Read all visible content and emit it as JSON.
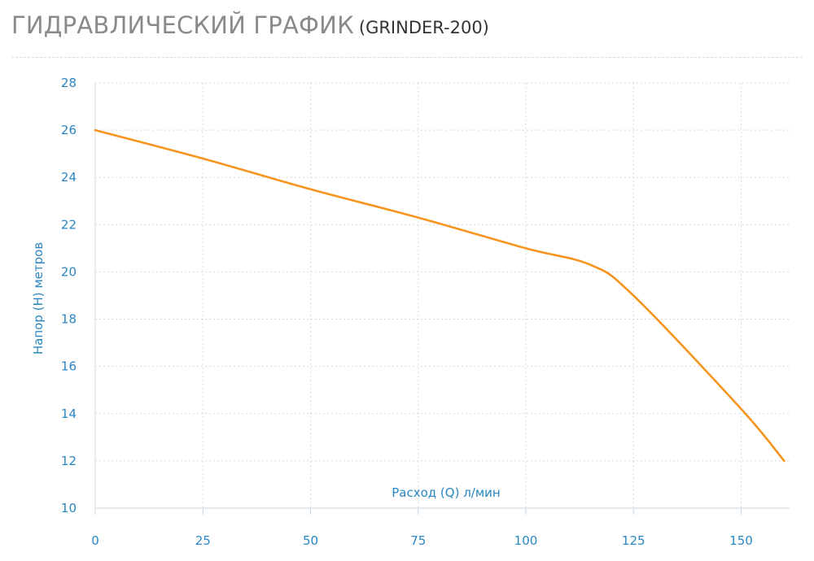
{
  "header": {
    "title": "ГИДРАВЛИЧЕСКИЙ ГРАФИК",
    "model": "(GRINDER-200)"
  },
  "chart_data": {
    "type": "line",
    "title": "ГИДРАВЛИЧЕСКИЙ ГРАФИК (GRINDER-200)",
    "xlabel": "Расход (Q) л/мин",
    "ylabel": "Напор (H) метров",
    "xlim": [
      0,
      160
    ],
    "ylim": [
      10,
      28
    ],
    "xticks": [
      0,
      25,
      50,
      75,
      100,
      125,
      150
    ],
    "yticks": [
      10,
      12,
      14,
      16,
      18,
      20,
      22,
      24,
      26,
      28
    ],
    "grid": true,
    "series": [
      {
        "color": "#f7941d",
        "x": [
          0,
          25,
          50,
          75,
          100,
          115,
          125,
          150,
          160
        ],
        "y": [
          26.0,
          24.8,
          23.5,
          22.3,
          21.0,
          20.3,
          19.0,
          14.2,
          12.0
        ]
      }
    ]
  }
}
